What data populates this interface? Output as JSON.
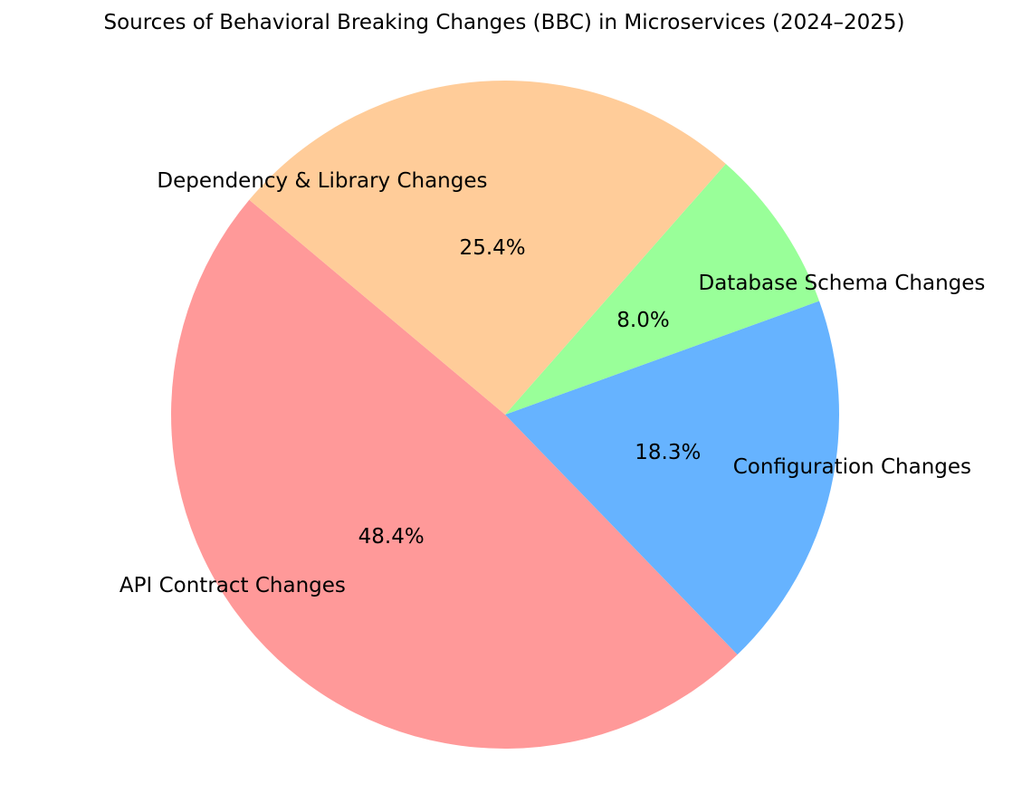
{
  "title": "Sources of Behavioral Breaking Changes (BBC) in Microservices (2024–2025)",
  "chart_data": {
    "type": "pie",
    "title": "Sources of Behavioral Breaking Changes (BBC) in Microservices (2024–2025)",
    "slices": [
      {
        "label": "API Contract Changes",
        "value": 48.4,
        "pct_label": "48.4%",
        "color": "#ff9999"
      },
      {
        "label": "Configuration Changes",
        "value": 18.3,
        "pct_label": "18.3%",
        "color": "#66b3ff"
      },
      {
        "label": "Database Schema Changes",
        "value": 8.0,
        "pct_label": "8.0%",
        "color": "#99ff99"
      },
      {
        "label": "Dependency & Library Changes",
        "value": 25.4,
        "pct_label": "25.4%",
        "color": "#ffcc99"
      }
    ],
    "start_angle_deg": 140,
    "counterclockwise": true,
    "label_distance": 0.7,
    "pct_distance": 0.5,
    "legend": "none",
    "background": "#ffffff",
    "text_color": "#000000"
  }
}
